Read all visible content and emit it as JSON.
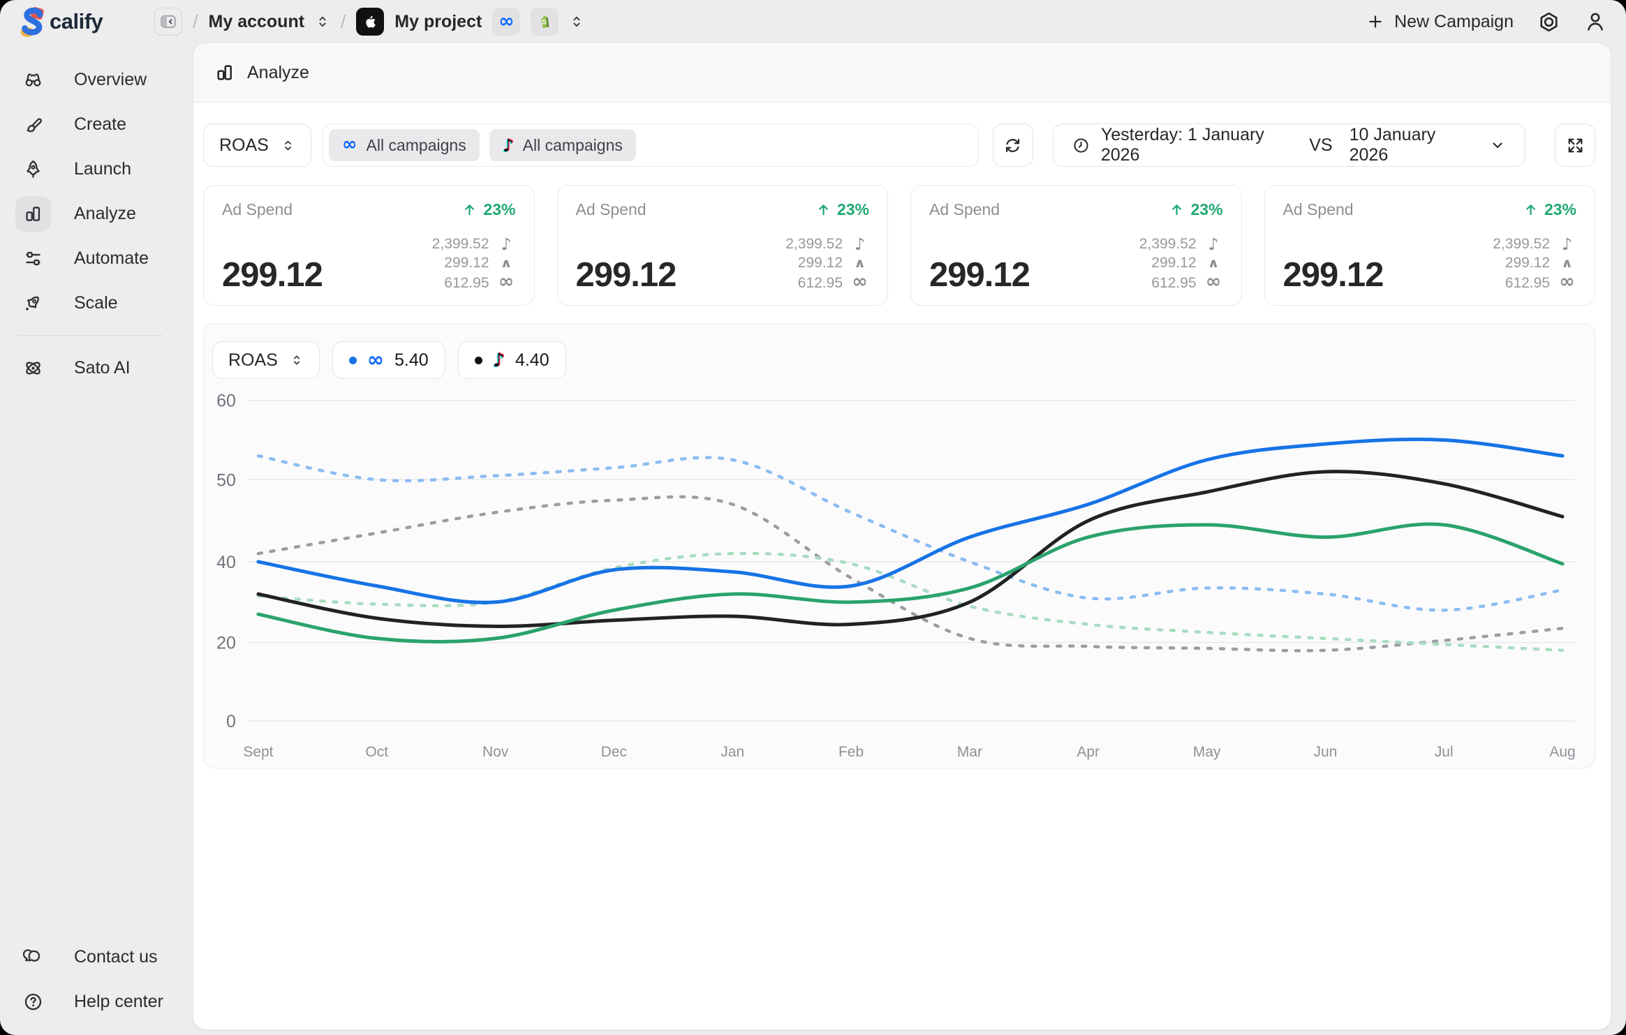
{
  "brand": {
    "mark": "S",
    "name_rest": "calify"
  },
  "topbar": {
    "breadcrumb": {
      "account": "My account",
      "project": "My project"
    },
    "new_campaign": "New Campaign"
  },
  "sidebar": {
    "items": [
      {
        "label": "Overview",
        "icon": "binoculars-icon"
      },
      {
        "label": "Create",
        "icon": "paintbrush-icon"
      },
      {
        "label": "Launch",
        "icon": "rocket-icon"
      },
      {
        "label": "Analyze",
        "icon": "bar-chart-icon",
        "active": true
      },
      {
        "label": "Automate",
        "icon": "sliders-icon"
      },
      {
        "label": "Scale",
        "icon": "rocket-tilted-icon"
      },
      {
        "label": "Sato AI",
        "icon": "atom-icon"
      }
    ],
    "footer": [
      {
        "label": "Contact us",
        "icon": "chat-bubbles-icon"
      },
      {
        "label": "Help center",
        "icon": "question-circle-icon"
      }
    ]
  },
  "panel": {
    "title": "Analyze"
  },
  "controls": {
    "metric": "ROAS",
    "filters": [
      {
        "platform": "meta",
        "label": "All campaigns"
      },
      {
        "platform": "tiktok",
        "label": "All campaigns"
      }
    ],
    "date": {
      "range": "Yesterday: 1 January 2026",
      "vs": "VS",
      "compare": "10 January 2026"
    }
  },
  "cards": [
    {
      "title": "Ad Spend",
      "change": "23%",
      "value": "299.12",
      "breakdown": [
        {
          "value": "2,399.52",
          "platform": "tiktok"
        },
        {
          "value": "299.12",
          "platform": "peak"
        },
        {
          "value": "612.95",
          "platform": "meta"
        }
      ]
    },
    {
      "title": "Ad Spend",
      "change": "23%",
      "value": "299.12",
      "breakdown": [
        {
          "value": "2,399.52",
          "platform": "tiktok"
        },
        {
          "value": "299.12",
          "platform": "peak"
        },
        {
          "value": "612.95",
          "platform": "meta"
        }
      ]
    },
    {
      "title": "Ad Spend",
      "change": "23%",
      "value": "299.12",
      "breakdown": [
        {
          "value": "2,399.52",
          "platform": "tiktok"
        },
        {
          "value": "299.12",
          "platform": "peak"
        },
        {
          "value": "612.95",
          "platform": "meta"
        }
      ]
    },
    {
      "title": "Ad Spend",
      "change": "23%",
      "value": "299.12",
      "breakdown": [
        {
          "value": "2,399.52",
          "platform": "tiktok"
        },
        {
          "value": "299.12",
          "platform": "peak"
        },
        {
          "value": "612.95",
          "platform": "meta"
        }
      ]
    }
  ],
  "chart": {
    "metric": "ROAS",
    "legend": [
      {
        "platform": "meta",
        "dot": "#1673e6",
        "value": "5.40"
      },
      {
        "platform": "tiktok",
        "dot": "#111111",
        "value": "4.40"
      }
    ],
    "chart_data": {
      "type": "line",
      "title": "ROAS by month, current period vs previous period",
      "x": [
        "Sept",
        "Oct",
        "Nov",
        "Dec",
        "Jan",
        "Feb",
        "Mar",
        "Apr",
        "May",
        "Jun",
        "Jul",
        "Aug"
      ],
      "y_ticks": [
        60,
        50,
        40,
        20,
        0
      ],
      "ylim": [
        0,
        60
      ],
      "grid": true,
      "legend_position": "top-left",
      "series": [
        {
          "name": "Meta (previous)",
          "style": "dashed",
          "color": "#8bbcf2",
          "values": [
            53,
            50,
            50.5,
            51.5,
            52.5,
            46,
            40,
            31,
            33.5,
            32,
            28,
            33
          ]
        },
        {
          "name": "TikTok (previous)",
          "style": "dashed",
          "color": "#9d9da1",
          "values": [
            41,
            43.5,
            46,
            47.5,
            47,
            36,
            21,
            19,
            18.5,
            18,
            20.5,
            23.5
          ]
        },
        {
          "name": "Shopify (previous)",
          "style": "dashed",
          "color": "#a8dcc0",
          "values": [
            31.5,
            29.5,
            30,
            38.5,
            41,
            39.5,
            29,
            24.5,
            22.5,
            21,
            19.5,
            18
          ]
        },
        {
          "name": "Meta (current)",
          "style": "solid",
          "color": "#1673e6",
          "values": [
            40,
            34,
            30,
            38,
            37.5,
            34,
            43,
            47,
            52.5,
            54.5,
            55,
            53
          ]
        },
        {
          "name": "TikTok (current)",
          "style": "solid",
          "color": "#222222",
          "values": [
            32,
            26,
            24,
            25.5,
            26.5,
            24.5,
            30,
            45,
            48.5,
            51,
            49.5,
            45.5
          ]
        },
        {
          "name": "Shopify (current)",
          "style": "solid",
          "color": "#2aa36b",
          "values": [
            27,
            21,
            21,
            28,
            32,
            30,
            33.5,
            43,
            44.5,
            43,
            44.5,
            39.5
          ]
        }
      ]
    }
  },
  "glyphs": {
    "note": "♪",
    "infinity": "∞",
    "peak": "∧"
  },
  "colors": {
    "accent_green": "#1fa971",
    "meta_blue": "#0866ff",
    "page_bg": "#ededee",
    "chart_blue": "#1673e6",
    "chart_black": "#222222",
    "chart_green": "#2aa36b"
  }
}
